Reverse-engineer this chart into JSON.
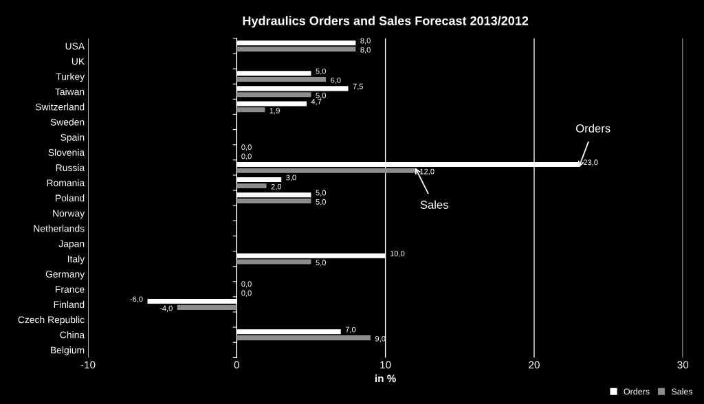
{
  "chart_data": {
    "type": "bar",
    "orientation": "horizontal",
    "title": "Hydraulics Orders and Sales Forecast 2013/2012",
    "xlabel": "in %",
    "categories": [
      "USA",
      "UK",
      "Turkey",
      "Taiwan",
      "Switzerland",
      "Sweden",
      "Spain",
      "Slovenia",
      "Russia",
      "Romania",
      "Poland",
      "Norway",
      "Netherlands",
      "Japan",
      "Italy",
      "Germany",
      "France",
      "Finland",
      "Czech Republic",
      "China",
      "Belgium"
    ],
    "series": [
      {
        "name": "Orders",
        "color": "#ffffff",
        "values": [
          8.0,
          null,
          5.0,
          7.5,
          4.7,
          null,
          null,
          0.0,
          23.0,
          3.0,
          5.0,
          null,
          null,
          null,
          10.0,
          null,
          0.0,
          -6.0,
          null,
          7.0,
          null
        ],
        "value_labels": [
          "8,0",
          null,
          "5,0",
          "7,5",
          "4,7",
          null,
          null,
          "0,0",
          "23,0",
          "3,0",
          "5,0",
          null,
          null,
          null,
          "10,0",
          null,
          "0,0",
          "-6,0",
          null,
          "7,0",
          null
        ]
      },
      {
        "name": "Sales",
        "color": "#8c8c8c",
        "values": [
          8.0,
          null,
          6.0,
          5.0,
          1.9,
          null,
          null,
          0.0,
          12.0,
          2.0,
          5.0,
          null,
          null,
          null,
          5.0,
          null,
          0.0,
          -4.0,
          null,
          9.0,
          null
        ],
        "value_labels": [
          "8,0",
          null,
          "6,0",
          "5,0",
          "1,9",
          null,
          null,
          "0,0",
          "12,0",
          "2,0",
          "5,0",
          null,
          null,
          null,
          "5,0",
          null,
          "0,0",
          "-4,0",
          null,
          "9,0",
          null
        ]
      }
    ],
    "xlim": [
      -10,
      30
    ],
    "xticks": [
      -10,
      0,
      10,
      20,
      30
    ],
    "grid": "x",
    "legend": "bottom right",
    "annotations": [
      {
        "text": "Orders",
        "x": 23,
        "y": "Russia"
      },
      {
        "text": "Sales",
        "x": 12,
        "y": "Russia"
      }
    ]
  }
}
